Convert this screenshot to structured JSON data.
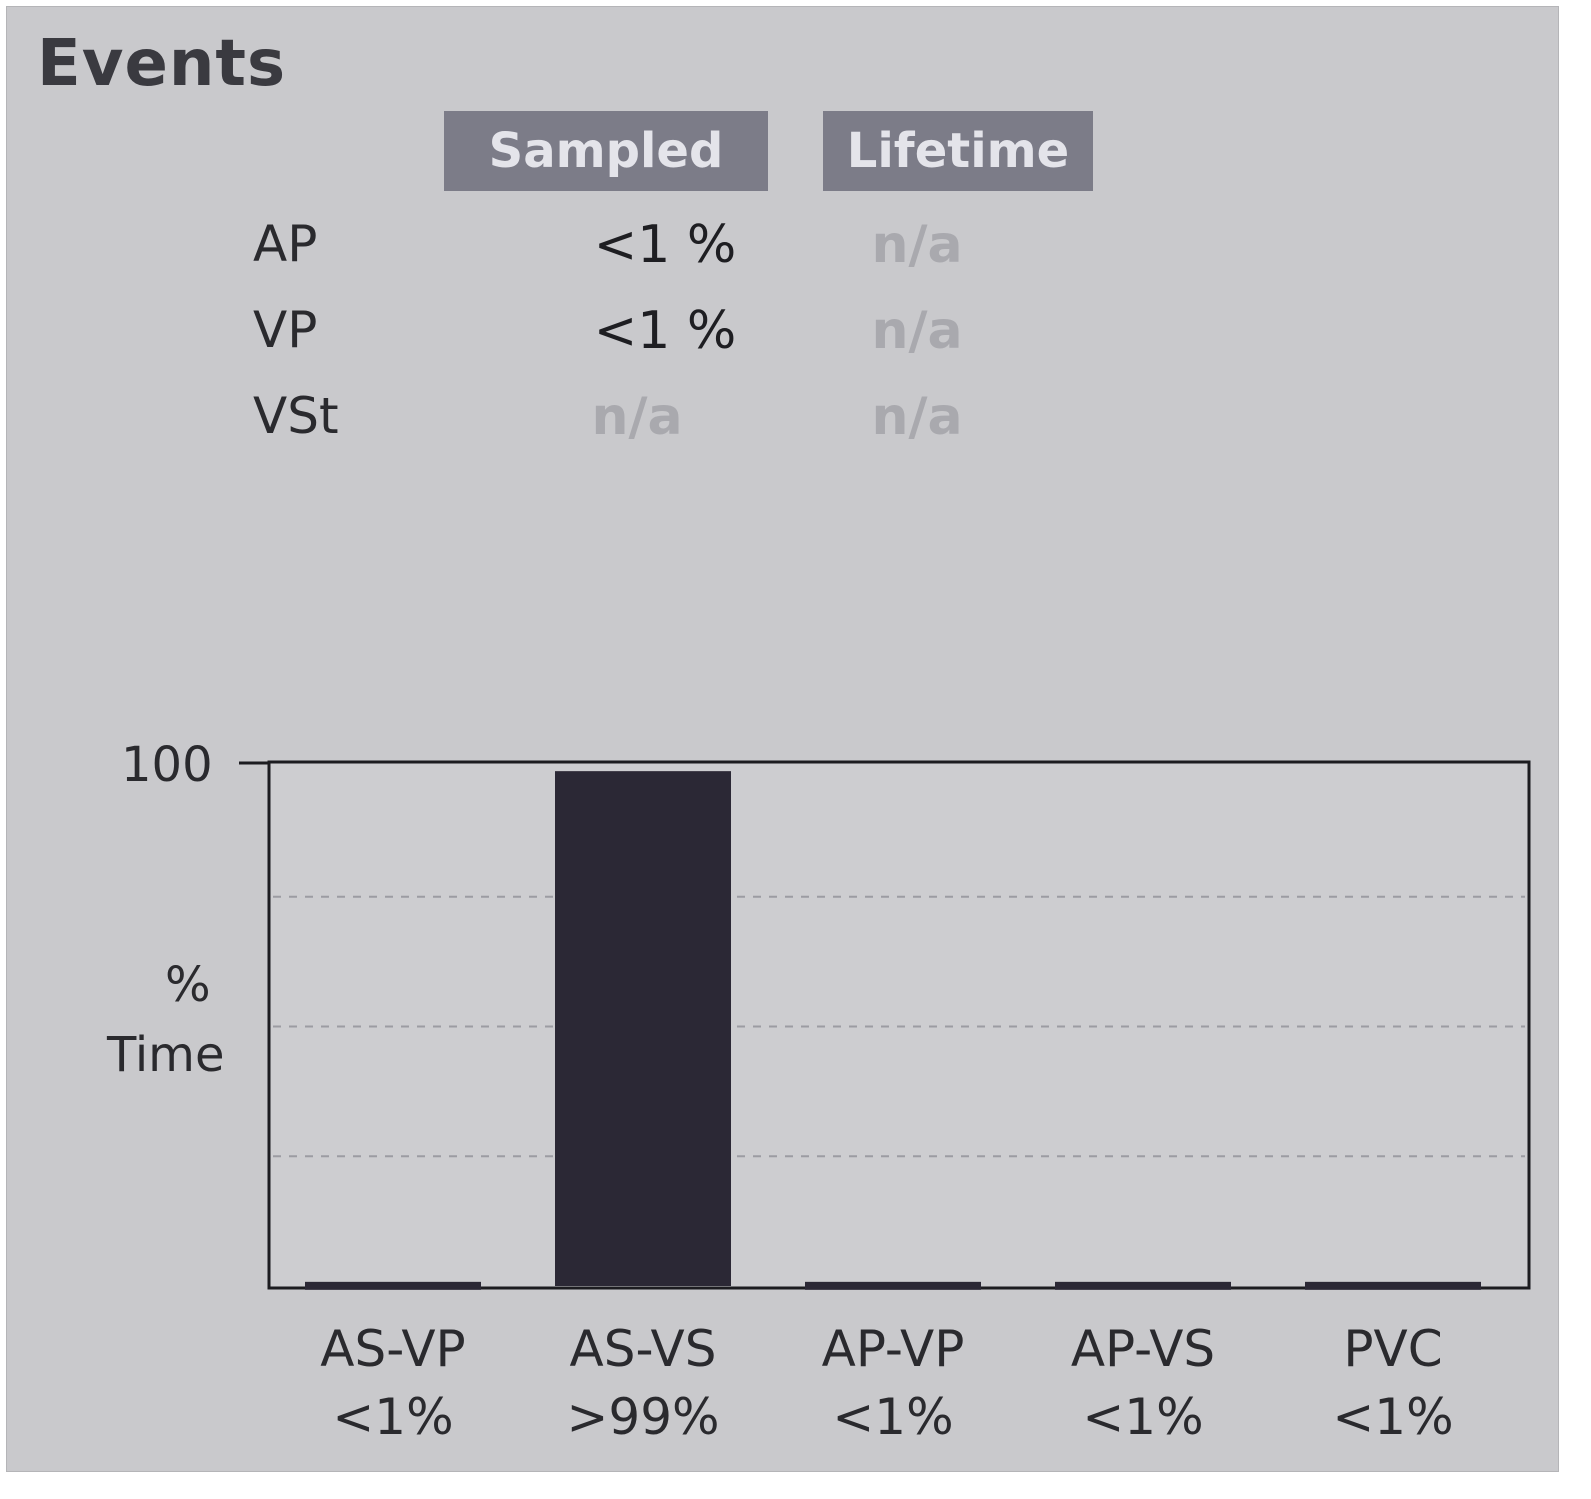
{
  "panel": {
    "title": "Events"
  },
  "table": {
    "headers": [
      "Sampled",
      "Lifetime"
    ],
    "rows": [
      {
        "label": "AP",
        "sampled": "<1 %",
        "lifetime": "n/a"
      },
      {
        "label": "VP",
        "sampled": "<1 %",
        "lifetime": "n/a"
      },
      {
        "label": "VSt",
        "sampled": "n/a",
        "lifetime": "n/a"
      }
    ]
  },
  "chart_data": {
    "type": "bar",
    "categories": [
      "AS-VP",
      "AS-VS",
      "AP-VP",
      "AP-VS",
      "PVC"
    ],
    "value_labels": [
      "<1%",
      ">99%",
      "<1%",
      "<1%",
      "<1%"
    ],
    "values": [
      0.8,
      99.2,
      0.8,
      0.8,
      0.8
    ],
    "ylabel": "% Time",
    "ylabel_lines": [
      "%",
      "Time"
    ],
    "ytick_label": "100",
    "ylim": [
      0,
      100
    ],
    "grid": "dashed horizontal at 25, 50, 75",
    "bar_color": "#2b2835"
  }
}
